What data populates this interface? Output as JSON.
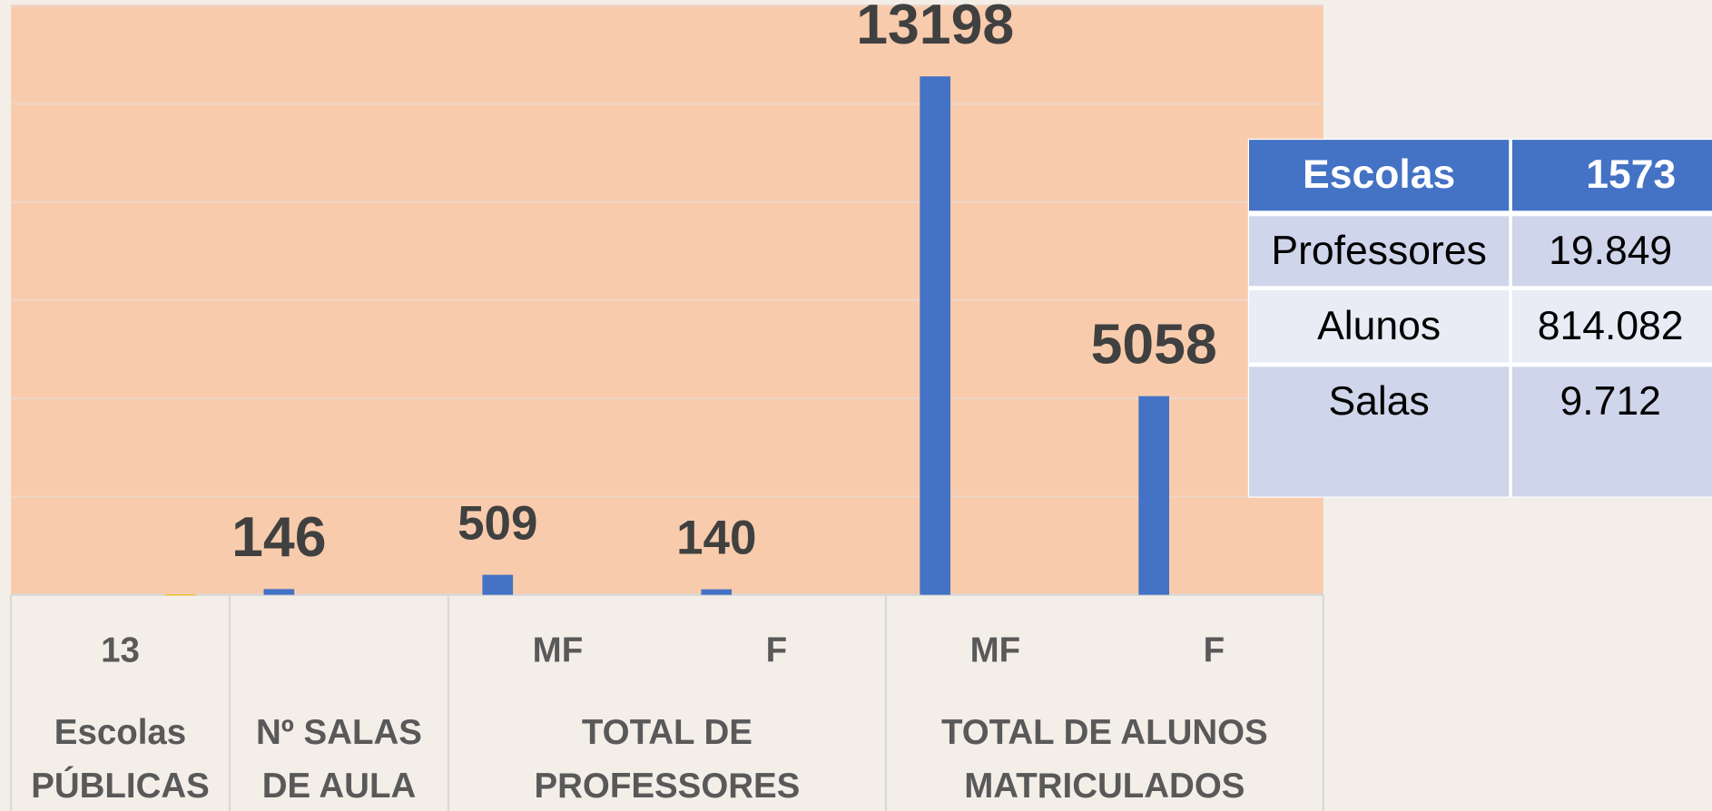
{
  "chart_data": {
    "type": "bar",
    "categories": [
      "13",
      null,
      "MF",
      "F",
      "MF",
      "F"
    ],
    "groups": [
      {
        "lines": [
          "Escolas",
          "PÚBLICAS"
        ],
        "span": 1
      },
      {
        "lines": [
          "Nº SALAS",
          "DE AULA"
        ],
        "span": 1
      },
      {
        "lines": [
          "TOTAL DE",
          "PROFESSORES"
        ],
        "span": 2
      },
      {
        "lines": [
          "TOTAL DE ALUNOS",
          "MATRICULADOS"
        ],
        "span": 2
      }
    ],
    "series": [
      {
        "color": "#4472c4",
        "values": [
          null,
          146,
          509,
          140,
          13198,
          5058
        ]
      },
      {
        "color": "#ffc000",
        "values": [
          13,
          null,
          null,
          null,
          null,
          null
        ]
      }
    ],
    "ylim": [
      0,
      15000
    ],
    "yticks": [
      0,
      2500,
      5000,
      7500,
      10000,
      12500,
      15000
    ],
    "grid": true
  },
  "table": {
    "header": [
      "Escolas",
      "1573"
    ],
    "rows": [
      [
        "Professores",
        "19.849"
      ],
      [
        "Alunos",
        "814.082"
      ],
      [
        "Salas",
        "9.712"
      ]
    ]
  }
}
